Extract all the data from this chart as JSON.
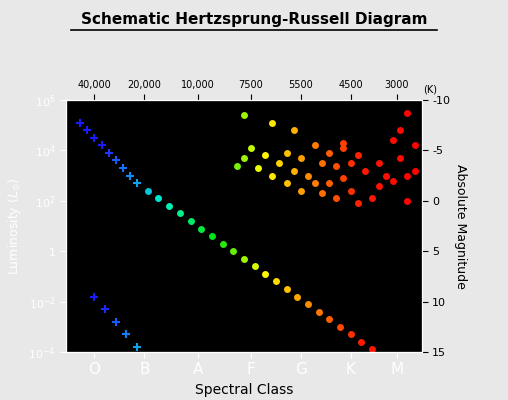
{
  "title": "Schematic Hertzsprung-Russell Diagram",
  "xlabel": "Spectral Class",
  "ylabel": "Luminosity ($L_{\\odot}$)",
  "ylabel_right": "Absolute Magnitude",
  "bg_outer": "#e8e8e8",
  "bg_inner": "#000000",
  "text_color_outer": "#000000",
  "text_color_inner": "#ffffff",
  "spectral_classes": [
    "O",
    "B",
    "A",
    "F",
    "G",
    "K",
    "M"
  ],
  "spectral_x": [
    0.08,
    0.22,
    0.37,
    0.52,
    0.66,
    0.8,
    0.93
  ],
  "temp_labels": [
    "40,000",
    "20,000",
    "10,000",
    "7500",
    "5500",
    "4500",
    "3000"
  ],
  "temp_x": [
    0.08,
    0.22,
    0.37,
    0.52,
    0.66,
    0.8,
    0.93
  ],
  "ylim": [
    0.0001,
    1000000.0
  ],
  "xlim": [
    0.0,
    1.0
  ],
  "ms_points": [
    [
      0.04,
      5.1
    ],
    [
      0.06,
      4.8
    ],
    [
      0.08,
      4.5
    ],
    [
      0.1,
      4.2
    ],
    [
      0.12,
      3.9
    ],
    [
      0.14,
      3.6
    ],
    [
      0.16,
      3.3
    ],
    [
      0.18,
      3.0
    ],
    [
      0.2,
      2.7
    ],
    [
      0.23,
      2.4
    ],
    [
      0.26,
      2.1
    ],
    [
      0.29,
      1.8
    ],
    [
      0.32,
      1.5
    ],
    [
      0.35,
      1.2
    ],
    [
      0.38,
      0.9
    ],
    [
      0.41,
      0.6
    ],
    [
      0.44,
      0.3
    ],
    [
      0.47,
      0.0
    ],
    [
      0.5,
      -0.3
    ],
    [
      0.53,
      -0.6
    ],
    [
      0.56,
      -0.9
    ],
    [
      0.59,
      -1.2
    ],
    [
      0.62,
      -1.5
    ],
    [
      0.65,
      -1.8
    ],
    [
      0.68,
      -2.1
    ],
    [
      0.71,
      -2.4
    ],
    [
      0.74,
      -2.7
    ],
    [
      0.77,
      -3.0
    ],
    [
      0.8,
      -3.3
    ],
    [
      0.83,
      -3.6
    ],
    [
      0.86,
      -3.9
    ],
    [
      0.9,
      -4.2
    ],
    [
      0.94,
      -4.5
    ]
  ],
  "wd_points": [
    [
      0.08,
      -1.8
    ],
    [
      0.11,
      -2.3
    ],
    [
      0.14,
      -2.8
    ],
    [
      0.17,
      -3.3
    ],
    [
      0.2,
      -3.8
    ]
  ],
  "giant_points": [
    [
      0.48,
      3.4
    ],
    [
      0.5,
      3.7
    ],
    [
      0.52,
      4.1
    ],
    [
      0.54,
      3.3
    ],
    [
      0.56,
      3.8
    ],
    [
      0.58,
      3.0
    ],
    [
      0.6,
      3.5
    ],
    [
      0.62,
      3.9
    ],
    [
      0.62,
      2.7
    ],
    [
      0.64,
      3.2
    ],
    [
      0.66,
      3.7
    ],
    [
      0.66,
      2.4
    ],
    [
      0.68,
      3.0
    ],
    [
      0.7,
      4.2
    ],
    [
      0.7,
      2.7
    ],
    [
      0.72,
      3.5
    ],
    [
      0.72,
      2.3
    ],
    [
      0.74,
      3.9
    ],
    [
      0.74,
      2.7
    ],
    [
      0.76,
      3.4
    ],
    [
      0.76,
      2.1
    ],
    [
      0.78,
      4.1
    ],
    [
      0.78,
      2.9
    ],
    [
      0.8,
      3.5
    ],
    [
      0.8,
      2.4
    ],
    [
      0.82,
      3.8
    ],
    [
      0.82,
      1.9
    ],
    [
      0.84,
      3.2
    ],
    [
      0.86,
      2.1
    ],
    [
      0.88,
      3.5
    ],
    [
      0.88,
      2.6
    ],
    [
      0.9,
      3.0
    ],
    [
      0.92,
      4.4
    ],
    [
      0.92,
      2.8
    ],
    [
      0.94,
      4.8
    ],
    [
      0.94,
      3.7
    ],
    [
      0.96,
      3.0
    ],
    [
      0.96,
      2.0
    ],
    [
      0.98,
      4.2
    ],
    [
      0.98,
      3.2
    ]
  ],
  "sg_points": [
    [
      0.5,
      5.4
    ],
    [
      0.58,
      5.1
    ],
    [
      0.64,
      4.8
    ],
    [
      0.78,
      4.3
    ],
    [
      0.96,
      5.5
    ]
  ]
}
